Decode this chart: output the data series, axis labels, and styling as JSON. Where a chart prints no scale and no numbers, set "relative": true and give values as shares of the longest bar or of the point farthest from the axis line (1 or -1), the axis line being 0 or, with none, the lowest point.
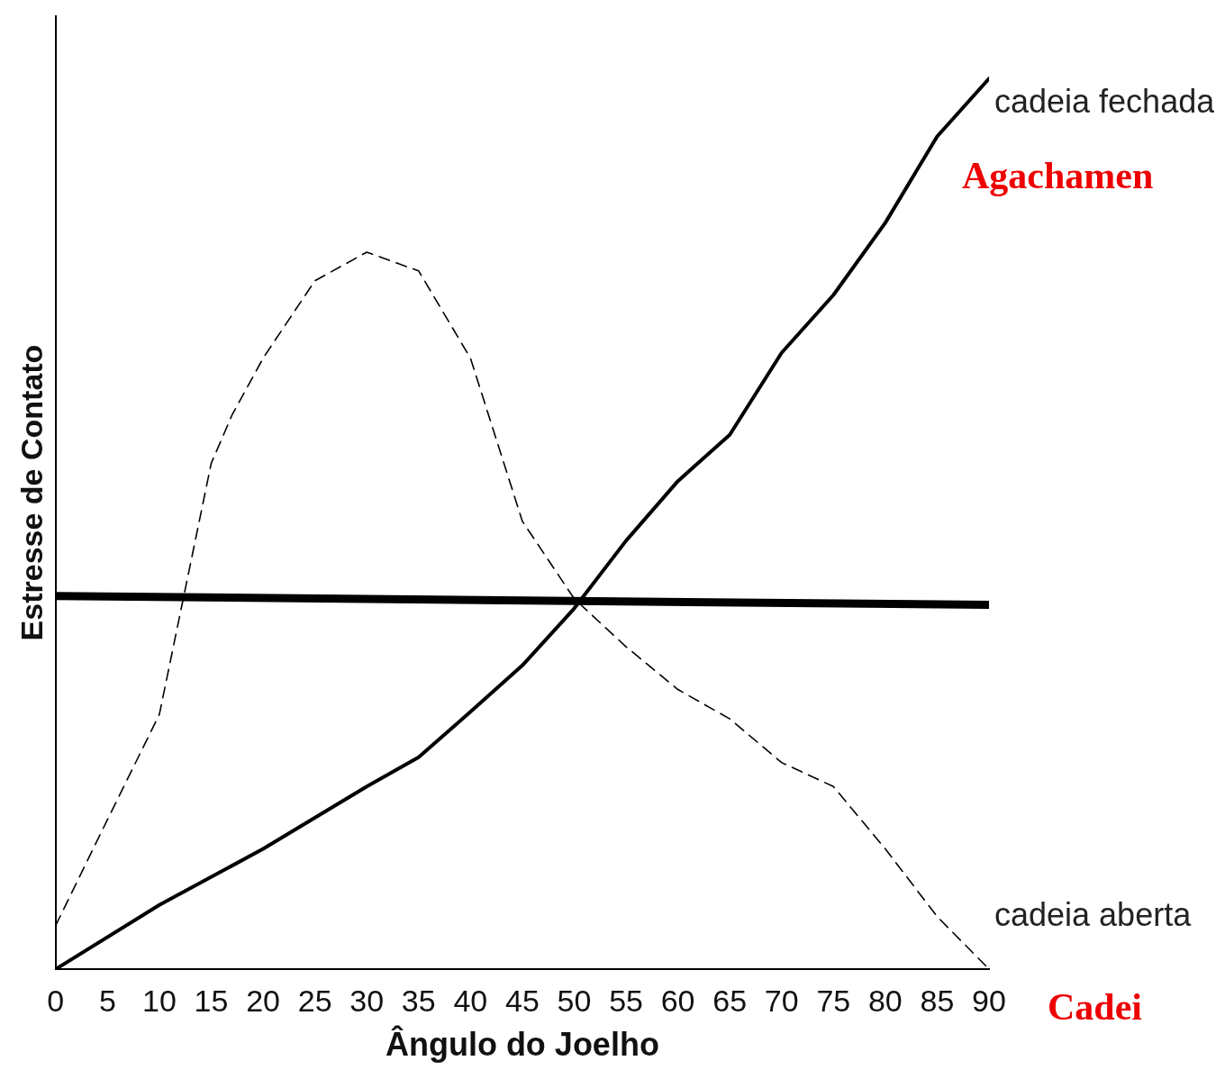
{
  "chart_data": {
    "type": "line",
    "relative": true,
    "xlabel": "Ângulo do Joelho",
    "ylabel": "Estresse de Contato",
    "xlim": [
      0,
      90
    ],
    "xticks": [
      0,
      5,
      10,
      15,
      20,
      25,
      30,
      35,
      40,
      45,
      50,
      55,
      60,
      65,
      70,
      75,
      80,
      85,
      90
    ],
    "legend": false,
    "grid": false,
    "marker": "none",
    "annotations": [
      "Agachamen",
      "Cadei"
    ],
    "series": [
      {
        "name": "cadeia fechada",
        "color": "#000000",
        "line_style": "solid",
        "x": [
          0,
          10,
          20,
          30,
          35,
          40,
          45,
          50,
          55,
          60,
          65,
          70,
          75,
          80,
          85,
          90
        ],
        "values": [
          0,
          0.072,
          0.135,
          0.205,
          0.238,
          0.289,
          0.341,
          0.405,
          0.481,
          0.548,
          0.6,
          0.692,
          0.757,
          0.838,
          0.935,
          1
        ]
      },
      {
        "name": "cadeia aberta",
        "color": "#000000",
        "line_style": "dashed",
        "x": [
          0,
          5,
          10,
          12.5,
          15,
          17,
          20,
          25,
          30,
          35,
          40,
          45,
          50,
          55,
          60,
          65,
          70,
          75,
          80,
          85,
          90
        ],
        "values": [
          0.049,
          0.168,
          0.286,
          0.427,
          0.568,
          0.622,
          0.686,
          0.773,
          0.805,
          0.784,
          0.686,
          0.503,
          0.416,
          0.362,
          0.314,
          0.281,
          0.232,
          0.205,
          0.135,
          0.059,
          0
        ]
      },
      {
        "color": "#000000",
        "line_style": "solid",
        "x": [
          0,
          90
        ],
        "values": [
          0.419,
          0.409
        ]
      }
    ]
  }
}
